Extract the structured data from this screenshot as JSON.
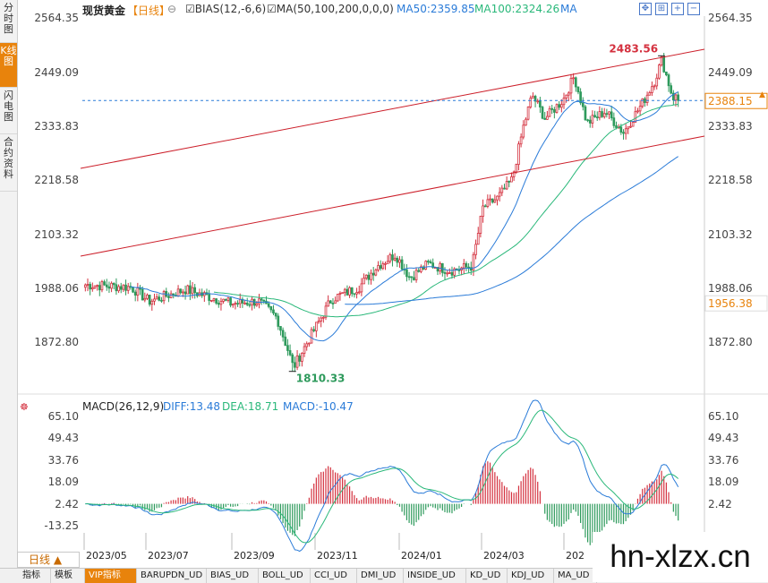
{
  "sidebar": {
    "tabs": [
      {
        "label": "分时图",
        "active": false
      },
      {
        "label": "K线图",
        "active": true
      },
      {
        "label": "闪电图",
        "active": false
      },
      {
        "label": "合约资料",
        "active": false
      }
    ]
  },
  "header": {
    "title": "现货黄金",
    "period": "【日线】",
    "bias_label": "BIAS(12,-6,6)",
    "ma_label": "MA(50,100,200,0,0,0)",
    "ma50_label": "MA50:2359.85",
    "ma100_label": "MA100:2324.26",
    "ma200_label": "MA"
  },
  "macd_header": {
    "name": "MACD(26,12,9)",
    "diff": "DIFF:13.48",
    "dea": "DEA:18.71",
    "macd": "MACD:-10.47"
  },
  "price_labels": {
    "current": "2388.15",
    "dashed_level": "1956.38",
    "high": "2483.56",
    "low": "1810.33"
  },
  "period_selector": {
    "label": "日线",
    "arrow": "▲"
  },
  "bottom_tabs": [
    "指标",
    "模板",
    "VIP指标",
    "BARUPDN_UD",
    "BIAS_UD",
    "BOLL_UD",
    "CCI_UD",
    "DMI_UD",
    "INSIDE_UD",
    "KD_UD",
    "KDJ_UD",
    "MA_UD"
  ],
  "watermark": "hn-xlzx.cn",
  "colors": {
    "up": "#d4313f",
    "down": "#2e9a5c",
    "ma50": "#2a7bd8",
    "ma100": "#2ab87a",
    "ma200": "#2a7bd8",
    "channel": "#cc1f2a",
    "accent": "#e8830c"
  },
  "chart_data": [
    {
      "type": "candlestick",
      "title": "现货黄金",
      "yticks": [
        "2564.35",
        "2449.09",
        "2333.83",
        "2218.58",
        "2103.32",
        "1988.06",
        "1872.80"
      ],
      "ylim": [
        1810,
        2564.35
      ],
      "xticks": [
        "2023/05",
        "2023/07",
        "2023/09",
        "2023/11",
        "2024/01",
        "2024/03",
        "202"
      ],
      "annotations": {
        "high": 2483.56,
        "low": 1810.33,
        "current": 2388.15
      },
      "series": [
        {
          "name": "MA50",
          "value": 2359.85
        },
        {
          "name": "MA100",
          "value": 2324.26
        }
      ]
    },
    {
      "type": "bar",
      "title": "MACD(26,12,9)",
      "yticks": [
        "65.10",
        "49.43",
        "33.76",
        "18.09",
        "2.42",
        "-13.25"
      ],
      "ylim": [
        -28.9,
        65.1
      ],
      "series": [
        {
          "name": "DIFF",
          "value": 13.48
        },
        {
          "name": "DEA",
          "value": 18.71
        },
        {
          "name": "MACD",
          "value": -10.47
        }
      ]
    }
  ]
}
